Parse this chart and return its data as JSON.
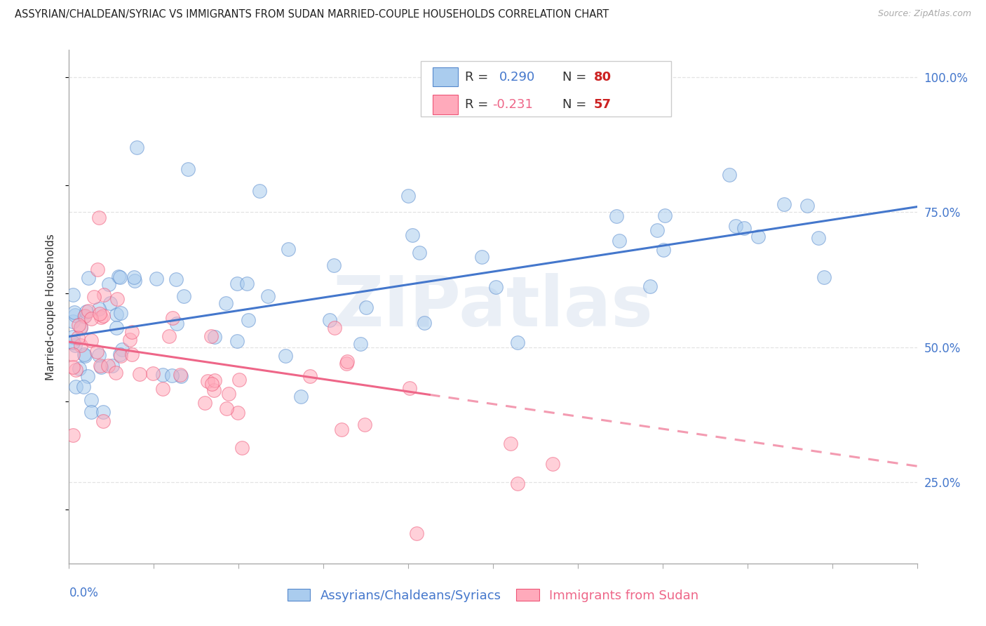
{
  "title": "ASSYRIAN/CHALDEAN/SYRIAC VS IMMIGRANTS FROM SUDAN MARRIED-COUPLE HOUSEHOLDS CORRELATION CHART",
  "source": "Source: ZipAtlas.com",
  "ylabel": "Married-couple Households",
  "ytick_labels": [
    "25.0%",
    "50.0%",
    "75.0%",
    "100.0%"
  ],
  "ytick_values": [
    0.25,
    0.5,
    0.75,
    1.0
  ],
  "xmin": 0.0,
  "xmax": 0.2,
  "ymin": 0.1,
  "ymax": 1.05,
  "r1_text": "R = ",
  "r1_val": "0.290",
  "n1_text": "N = ",
  "n1_val": "80",
  "r2_text": "R = ",
  "r2_val": "-0.231",
  "n2_text": "N = ",
  "n2_val": "57",
  "series1_color": "#aaccee",
  "series1_edge": "#5588cc",
  "series2_color": "#ffaabb",
  "series2_edge": "#ee5577",
  "trendline1_color": "#4477cc",
  "trendline2_color": "#ee6688",
  "rn_color": "#4477cc",
  "rn_n_color": "#cc2222",
  "text_dark": "#333333",
  "watermark_color": "#e8eef5",
  "grid_color": "#dddddd",
  "axis_color": "#aaaaaa",
  "watermark": "ZIPatlas",
  "legend1_label": "Assyrians/Chaldeans/Syriacs",
  "legend2_label": "Immigrants from Sudan",
  "legend1_color": "#4477cc",
  "legend2_color": "#ee6688",
  "title_fontsize": 10.5,
  "source_fontsize": 9,
  "tick_label_fontsize": 12,
  "ylabel_fontsize": 11,
  "legend_fontsize": 13,
  "legend_inner_fontsize": 13
}
